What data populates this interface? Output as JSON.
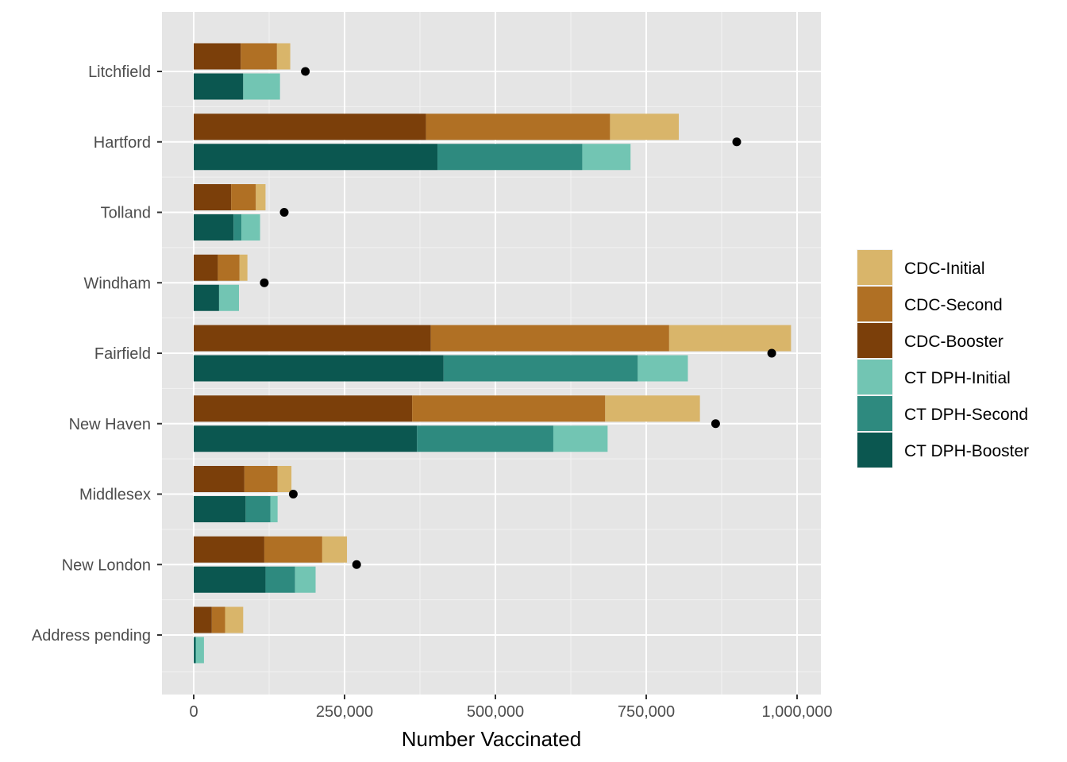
{
  "chart_data": {
    "type": "bar",
    "orientation": "horizontal",
    "stacked": true,
    "xlabel": "Number Vaccinated",
    "ylabel": "",
    "xlim": [
      -100000,
      1040000
    ],
    "x_ticks": [
      0,
      250000,
      500000,
      750000,
      1000000
    ],
    "x_tick_labels": [
      "0",
      "250,000",
      "500,000",
      "750,000",
      "1,000,000"
    ],
    "grid": true,
    "legend_position": "right",
    "categories": [
      "Litchfield",
      "Hartford",
      "Tolland",
      "Windham",
      "Fairfield",
      "New Haven",
      "Middlesex",
      "New London",
      "Address pending"
    ],
    "groups": [
      {
        "name": "CDC",
        "series": [
          {
            "name": "CDC-Booster",
            "color": "#7b3f0a",
            "values": [
              78000,
              385000,
              62000,
              40000,
              393000,
              362000,
              84000,
              117000,
              30000
            ]
          },
          {
            "name": "CDC-Second",
            "color": "#b07024",
            "values": [
              60000,
              305000,
              41000,
              36000,
              395000,
              320000,
              55000,
              96000,
              22000
            ]
          },
          {
            "name": "CDC-Initial",
            "color": "#d9b56a",
            "values": [
              22000,
              114000,
              16000,
              13000,
              202000,
              157000,
              23000,
              41000,
              30000
            ]
          }
        ]
      },
      {
        "name": "CT DPH",
        "series": [
          {
            "name": "CT DPH-Booster",
            "color": "#0b5750",
            "values": [
              82000,
              404000,
              66000,
              42000,
              414000,
              370000,
              86000,
              119000,
              2000
            ]
          },
          {
            "name": "CT DPH-Second",
            "color": "#2e8a7f",
            "values": [
              0,
              240000,
              13000,
              0,
              322000,
              226000,
              41000,
              49000,
              2000
            ]
          },
          {
            "name": "CT DPH-Initial",
            "color": "#72c5b3",
            "values": [
              61000,
              80000,
              31000,
              33000,
              83000,
              90000,
              12000,
              34000,
              13000
            ]
          }
        ]
      }
    ],
    "points": {
      "color": "#000000",
      "values": [
        185000,
        900000,
        150000,
        117000,
        958000,
        865000,
        165000,
        270000,
        null
      ]
    },
    "legend": [
      {
        "label": "CDC-Initial",
        "color": "#d9b56a"
      },
      {
        "label": "CDC-Second",
        "color": "#b07024"
      },
      {
        "label": "CDC-Booster",
        "color": "#7b3f0a"
      },
      {
        "label": "CT DPH-Initial",
        "color": "#72c5b3"
      },
      {
        "label": "CT DPH-Second",
        "color": "#2e8a7f"
      },
      {
        "label": "CT DPH-Booster",
        "color": "#0b5750"
      }
    ]
  }
}
